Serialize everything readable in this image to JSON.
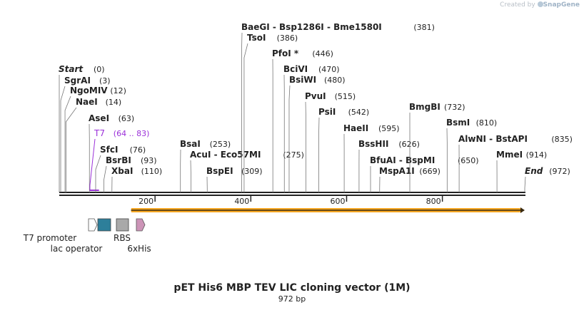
{
  "credit": {
    "prefix": "Created by",
    "brand": "SnapGene"
  },
  "title": "pET His6 MBP TEV LIC cloning vector (1M)",
  "length_text": "972 bp",
  "sequence_length": 972,
  "ruler_ticks": [
    {
      "pos": 200,
      "label": "200"
    },
    {
      "pos": 400,
      "label": "400"
    },
    {
      "pos": 600,
      "label": "600"
    },
    {
      "pos": 800,
      "label": "800"
    }
  ],
  "sites": [
    {
      "name": "Start",
      "pos_text": "(0)",
      "pos": 0,
      "italic": true
    },
    {
      "name": "SgrAI",
      "pos_text": "(3)",
      "pos": 3
    },
    {
      "name": "NgoMIV",
      "pos_text": "(12)",
      "pos": 12
    },
    {
      "name": "NaeI",
      "pos_text": "(14)",
      "pos": 14
    },
    {
      "name": "AseI",
      "pos_text": "(63)",
      "pos": 63
    },
    {
      "name": "T7",
      "pos_text": "(64 .. 83)",
      "pos": 64,
      "primer": true
    },
    {
      "name": "SfcI",
      "pos_text": "(76)",
      "pos": 76
    },
    {
      "name": "BsrBI",
      "pos_text": "(93)",
      "pos": 93
    },
    {
      "name": "XbaI",
      "pos_text": "(110)",
      "pos": 110
    },
    {
      "name": "BsaI",
      "pos_text": "(253)",
      "pos": 253
    },
    {
      "name": "AcuI  -  Eco57MI",
      "pos_text": "(275)",
      "pos": 275
    },
    {
      "name": "BspEI",
      "pos_text": "(309)",
      "pos": 309
    },
    {
      "name": "BaeGI  -  Bsp1286I  -  Bme1580I",
      "pos_text": "(381)",
      "pos": 381
    },
    {
      "name": "TsoI",
      "pos_text": "(386)",
      "pos": 386
    },
    {
      "name": "PfoI *",
      "pos_text": "(446)",
      "pos": 446
    },
    {
      "name": "BciVI",
      "pos_text": "(470)",
      "pos": 470
    },
    {
      "name": "BsiWI",
      "pos_text": "(480)",
      "pos": 480
    },
    {
      "name": "PvuI",
      "pos_text": "(515)",
      "pos": 515
    },
    {
      "name": "PsiI",
      "pos_text": "(542)",
      "pos": 542
    },
    {
      "name": "HaeII",
      "pos_text": "(595)",
      "pos": 595
    },
    {
      "name": "BssHII",
      "pos_text": "(626)",
      "pos": 626
    },
    {
      "name": "BfuAI  -  BspMI",
      "pos_text": "(650)",
      "pos": 650
    },
    {
      "name": "MspA1I",
      "pos_text": "(669)",
      "pos": 669
    },
    {
      "name": "BmgBI",
      "pos_text": "(732)",
      "pos": 732
    },
    {
      "name": "BsmI",
      "pos_text": "(810)",
      "pos": 810
    },
    {
      "name": "AlwNI  -  BstAPI",
      "pos_text": "(835)",
      "pos": 835
    },
    {
      "name": "MmeI",
      "pos_text": "(914)",
      "pos": 914
    },
    {
      "name": "End",
      "pos_text": "(972)",
      "pos": 972,
      "italic": true
    }
  ],
  "orf": {
    "start": 150,
    "end": 972,
    "color": "#f5a623"
  },
  "primer_color": "#9b30d9",
  "features": [
    {
      "name": "T7 promoter",
      "shape": "promoter",
      "color": "#ffffff"
    },
    {
      "name": "lac operator",
      "shape": "box",
      "color": "#2d7f9a"
    },
    {
      "name": "RBS",
      "shape": "box",
      "color": "#a9a9a9"
    },
    {
      "name": "6xHis",
      "shape": "arrow",
      "color": "#cc94b7"
    }
  ]
}
